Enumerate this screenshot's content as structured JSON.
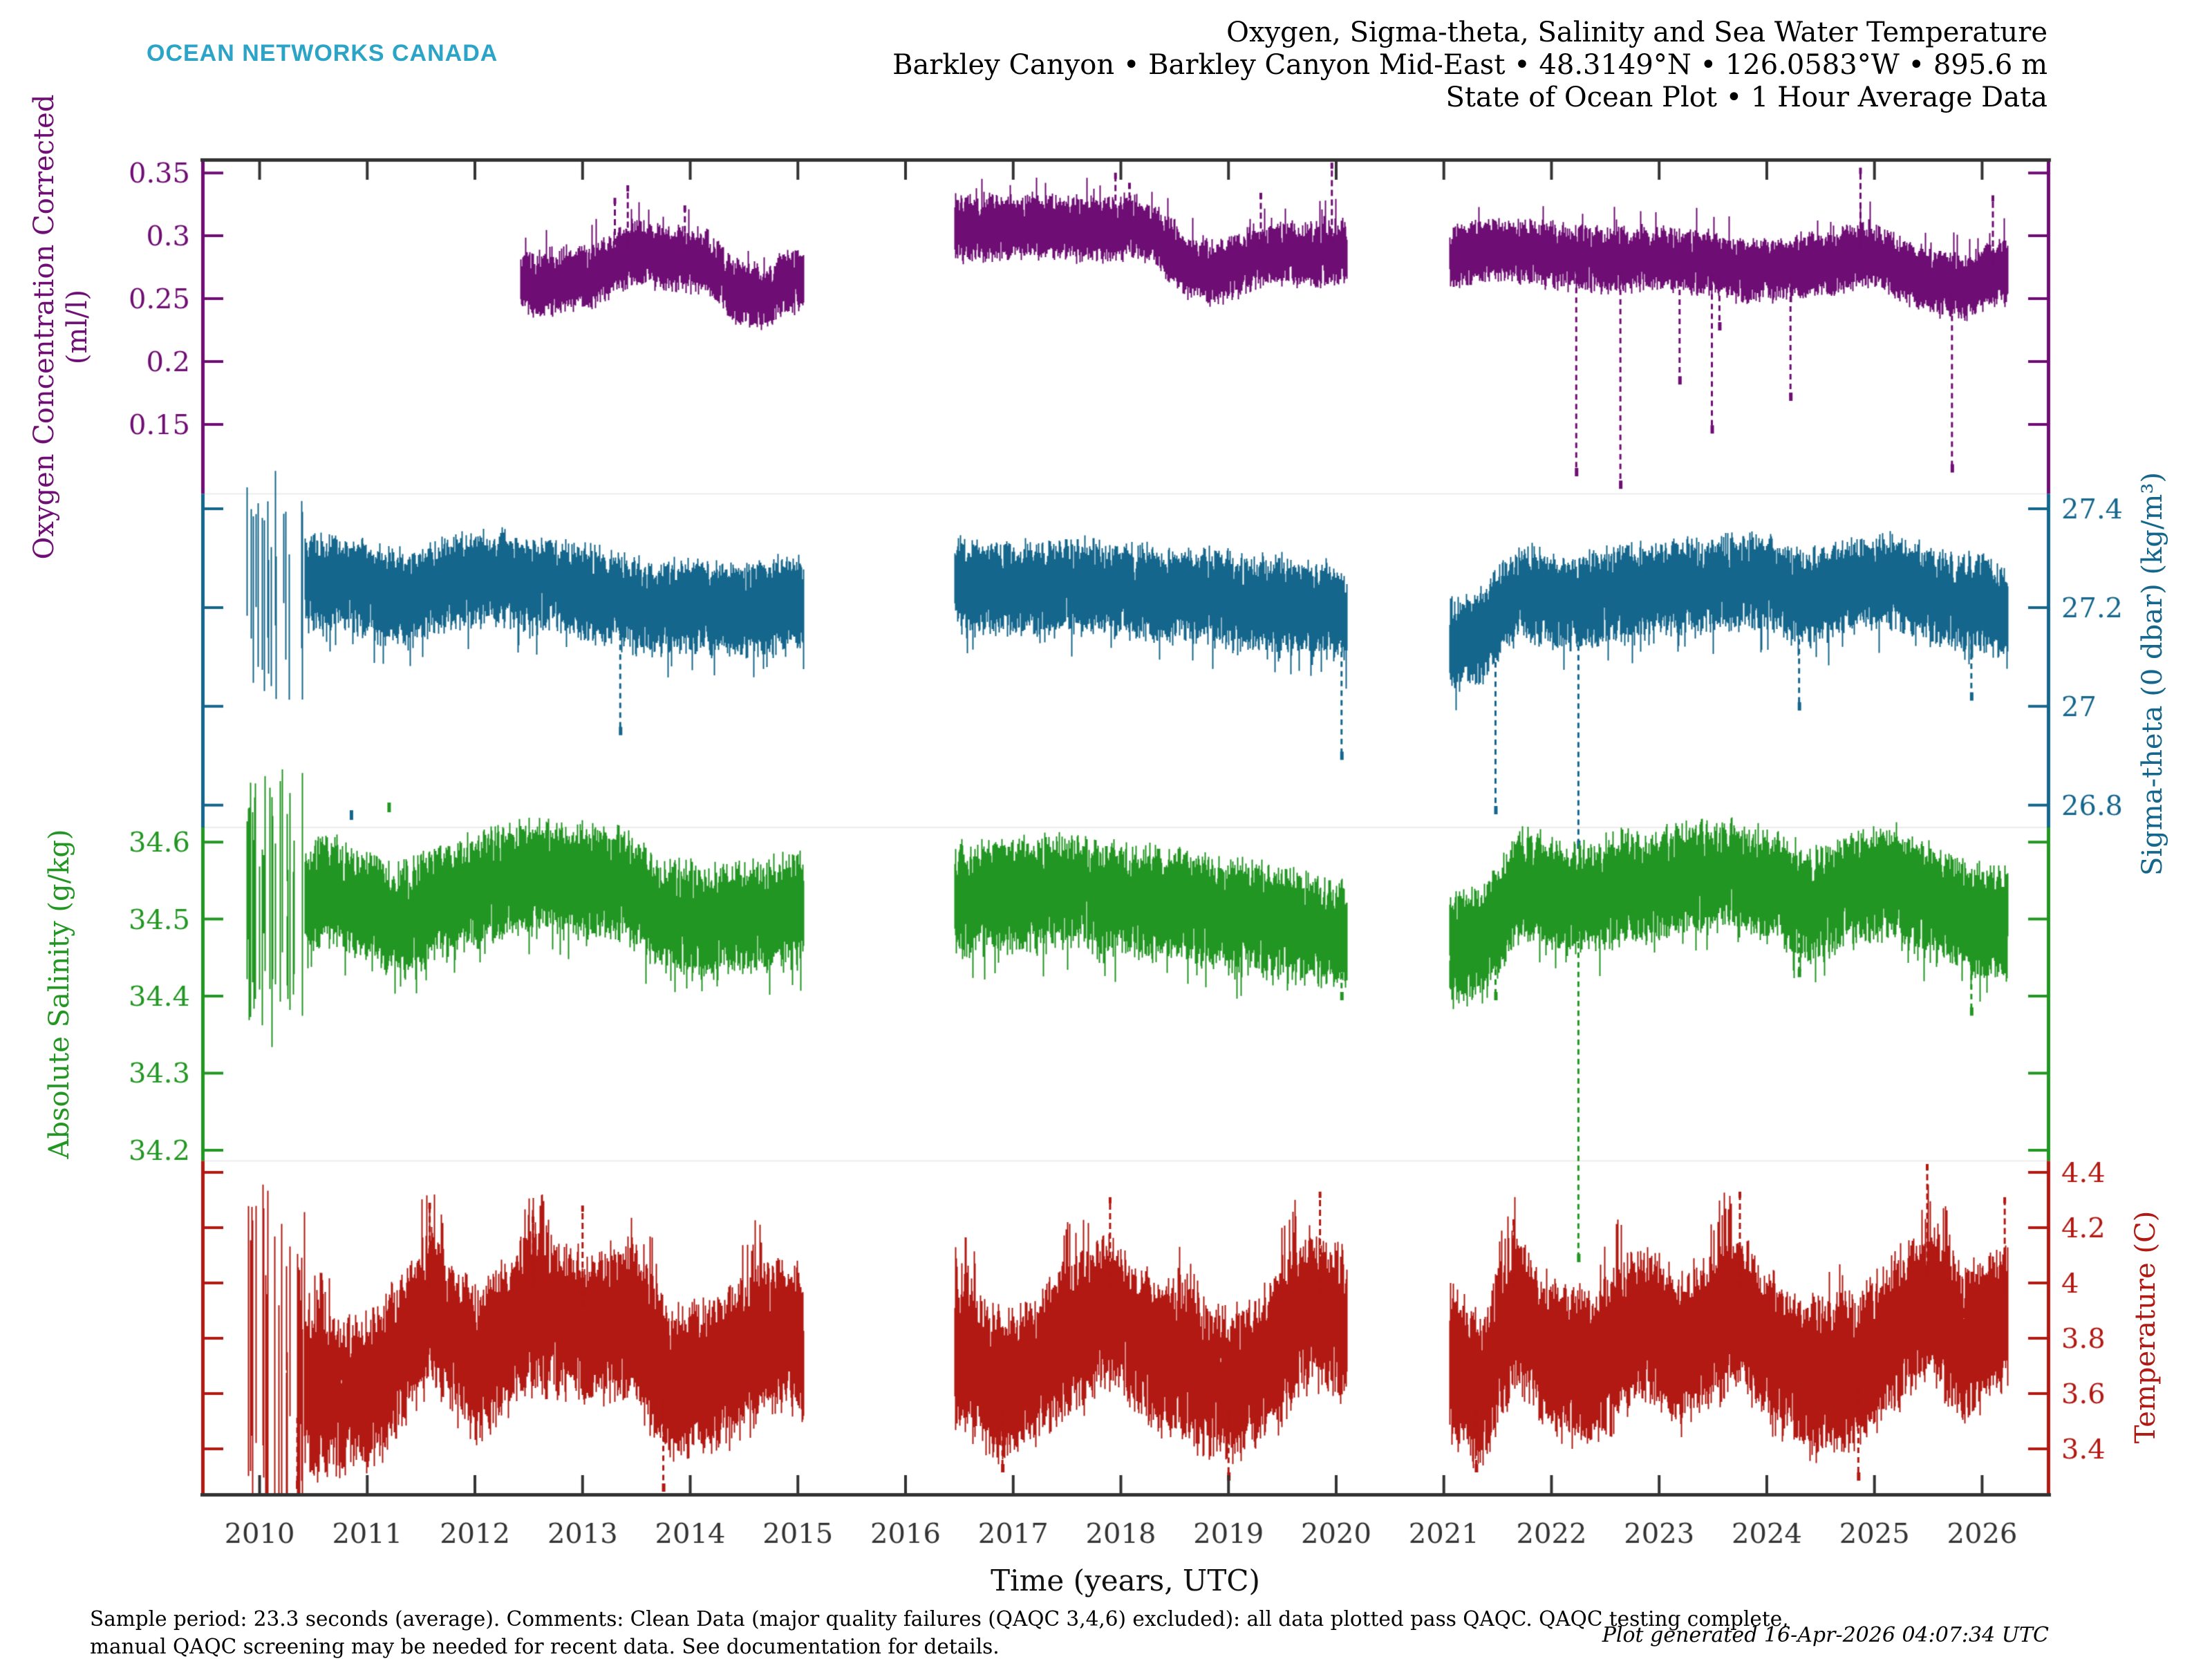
{
  "header": {
    "logo": "OCEAN NETWORKS CANADA",
    "title_lines": [
      "Oxygen, Sigma-theta, Salinity and Sea Water Temperature",
      "Barkley Canyon • Barkley Canyon Mid-East • 48.3149°N • 126.0583°W • 895.6 m",
      "State of Ocean Plot • 1 Hour Average Data"
    ]
  },
  "footer": {
    "left_lines": [
      "Sample period: 23.3 seconds (average). Comments: Clean Data (major quality failures (QAQC 3,4,6) excluded): all data plotted pass QAQC. QAQC testing complete,",
      "manual QAQC screening may be needed for recent data. See documentation for details."
    ],
    "generated": "Plot generated 16-Apr-2026 04:07:34 UTC"
  },
  "colors": {
    "logo": "#2ba4c7",
    "axis_dark": "#333333",
    "oxygen": "#6e0d73",
    "sigma_theta": "#15668c",
    "salinity": "#229622",
    "temperature": "#b11912"
  },
  "chart_data": {
    "type": "scatter",
    "title": "Oxygen, Sigma-theta, Salinity and Sea Water Temperature",
    "x_axis": {
      "label": "Time (years, UTC)",
      "min": 2009.47,
      "max": 2026.62,
      "tick_values": [
        2010,
        2011,
        2012,
        2013,
        2014,
        2015,
        2016,
        2017,
        2018,
        2019,
        2020,
        2021,
        2022,
        2023,
        2024,
        2025,
        2026
      ],
      "tick_labels": [
        "2010",
        "2011",
        "2012",
        "2013",
        "2014",
        "2015",
        "2016",
        "2017",
        "2018",
        "2019",
        "2020",
        "2021",
        "2022",
        "2023",
        "2024",
        "2025",
        "2026"
      ]
    },
    "series": [
      {
        "name": "Oxygen Concentration Corrected",
        "axis_label_lines": [
          "Oxygen Concentration Corrected",
          "(ml/l)"
        ],
        "unit": "ml/l",
        "side": "left",
        "quarter": 0,
        "color": "#6e0d73",
        "vmin": 0.0947,
        "vmax": 0.36,
        "ticks": [
          {
            "v": 0.35,
            "label": "0.35"
          },
          {
            "v": 0.3,
            "label": "0.3"
          },
          {
            "v": 0.25,
            "label": "0.25"
          },
          {
            "v": 0.2,
            "label": "0.2"
          },
          {
            "v": 0.15,
            "label": "0.15"
          }
        ],
        "segments": [
          [
            2012.42,
            2015.05
          ],
          [
            2016.45,
            2020.1
          ],
          [
            2021.05,
            2026.24
          ]
        ],
        "anchors": [
          [
            2012.42,
            0.262
          ],
          [
            2012.8,
            0.264
          ],
          [
            2013.1,
            0.27
          ],
          [
            2013.45,
            0.287
          ],
          [
            2013.85,
            0.283
          ],
          [
            2014.15,
            0.28
          ],
          [
            2014.4,
            0.258
          ],
          [
            2014.7,
            0.252
          ],
          [
            2014.9,
            0.262
          ],
          [
            2015.05,
            0.268
          ],
          [
            2016.45,
            0.306
          ],
          [
            2017.2,
            0.308
          ],
          [
            2017.8,
            0.305
          ],
          [
            2018.1,
            0.309
          ],
          [
            2018.35,
            0.3
          ],
          [
            2018.6,
            0.277
          ],
          [
            2018.9,
            0.271
          ],
          [
            2019.2,
            0.283
          ],
          [
            2019.5,
            0.289
          ],
          [
            2019.8,
            0.285
          ],
          [
            2020.1,
            0.29
          ],
          [
            2021.05,
            0.284
          ],
          [
            2021.5,
            0.291
          ],
          [
            2022.0,
            0.285
          ],
          [
            2022.5,
            0.281
          ],
          [
            2023.0,
            0.284
          ],
          [
            2023.5,
            0.278
          ],
          [
            2023.85,
            0.271
          ],
          [
            2024.2,
            0.276
          ],
          [
            2024.6,
            0.28
          ],
          [
            2024.95,
            0.287
          ],
          [
            2025.3,
            0.272
          ],
          [
            2025.6,
            0.263
          ],
          [
            2025.85,
            0.259
          ],
          [
            2026.05,
            0.27
          ],
          [
            2026.24,
            0.272
          ]
        ],
        "noise": {
          "up": 0.011,
          "dn": 0.013,
          "up_prob": 0.055,
          "up_amp": 0.036,
          "dn_prob": 0.04,
          "dn_amp": 0.018,
          "seasonal": false
        },
        "down_spikes": [
          [
            2022.23,
            0.112
          ],
          [
            2022.64,
            0.102
          ],
          [
            2023.19,
            0.185
          ],
          [
            2023.49,
            0.146
          ],
          [
            2023.56,
            0.228
          ],
          [
            2024.22,
            0.172
          ],
          [
            2025.72,
            0.115
          ]
        ],
        "up_spikes": [
          [
            2013.3,
            0.328
          ],
          [
            2013.42,
            0.338
          ],
          [
            2013.95,
            0.322
          ],
          [
            2017.95,
            0.348
          ],
          [
            2018.08,
            0.34
          ],
          [
            2019.3,
            0.332
          ],
          [
            2019.96,
            0.356
          ],
          [
            2024.87,
            0.352
          ],
          [
            2026.1,
            0.33
          ]
        ],
        "outlier_points": []
      },
      {
        "name": "Sigma-theta (0 dbar)",
        "axis_label_lines": [
          "Sigma-theta (0 dbar) (kg/m³)"
        ],
        "unit": "kg/m³",
        "side": "right",
        "quarter": 1,
        "color": "#15668c",
        "vmin": 26.755,
        "vmax": 27.43,
        "ticks": [
          {
            "v": 27.4,
            "label": "27.4"
          },
          {
            "v": 27.2,
            "label": "27.2"
          },
          {
            "v": 27.0,
            "label": "27"
          },
          {
            "v": 26.8,
            "label": "26.8"
          }
        ],
        "segments": [
          [
            2009.85,
            2015.05
          ],
          [
            2016.45,
            2020.1
          ],
          [
            2021.05,
            2026.24
          ]
        ],
        "sparse_until": 2010.42,
        "anchors": [
          [
            2009.85,
            27.24
          ],
          [
            2010.2,
            27.25
          ],
          [
            2010.6,
            27.26
          ],
          [
            2011.0,
            27.24
          ],
          [
            2011.4,
            27.22
          ],
          [
            2011.8,
            27.26
          ],
          [
            2012.3,
            27.26
          ],
          [
            2012.8,
            27.25
          ],
          [
            2013.2,
            27.23
          ],
          [
            2013.6,
            27.2
          ],
          [
            2014.0,
            27.21
          ],
          [
            2014.5,
            27.2
          ],
          [
            2015.05,
            27.22
          ],
          [
            2016.45,
            27.25
          ],
          [
            2017.0,
            27.24
          ],
          [
            2017.5,
            27.25
          ],
          [
            2018.0,
            27.24
          ],
          [
            2018.5,
            27.23
          ],
          [
            2019.0,
            27.22
          ],
          [
            2019.5,
            27.21
          ],
          [
            2019.9,
            27.2
          ],
          [
            2020.1,
            27.18
          ],
          [
            2021.05,
            27.13
          ],
          [
            2021.35,
            27.15
          ],
          [
            2021.7,
            27.24
          ],
          [
            2022.1,
            27.21
          ],
          [
            2022.5,
            27.23
          ],
          [
            2023.0,
            27.24
          ],
          [
            2023.5,
            27.25
          ],
          [
            2024.0,
            27.26
          ],
          [
            2024.4,
            27.22
          ],
          [
            2024.8,
            27.25
          ],
          [
            2025.2,
            27.26
          ],
          [
            2025.6,
            27.22
          ],
          [
            2026.0,
            27.22
          ],
          [
            2026.24,
            27.19
          ]
        ],
        "noise": {
          "up": 0.04,
          "dn": 0.05,
          "up_prob": 0.03,
          "up_amp": 0.05,
          "dn_prob": 0.07,
          "dn_amp": 0.12,
          "seasonal": false
        },
        "down_spikes": [
          [
            2013.35,
            26.95
          ],
          [
            2020.05,
            26.9
          ],
          [
            2021.48,
            26.79
          ],
          [
            2022.25,
            26.72
          ],
          [
            2024.3,
            27.0
          ],
          [
            2025.9,
            27.02
          ]
        ],
        "up_spikes": [],
        "outlier_points": [
          [
            2010.85,
            26.78
          ]
        ]
      },
      {
        "name": "Absolute Salinity",
        "axis_label_lines": [
          "Absolute Salinity (g/kg)"
        ],
        "unit": "g/kg",
        "side": "left",
        "quarter": 2,
        "color": "#229622",
        "vmin": 34.186,
        "vmax": 34.619,
        "ticks": [
          {
            "v": 34.6,
            "label": "34.6"
          },
          {
            "v": 34.5,
            "label": "34.5"
          },
          {
            "v": 34.4,
            "label": "34.4"
          },
          {
            "v": 34.3,
            "label": "34.3"
          },
          {
            "v": 34.2,
            "label": "34.2"
          }
        ],
        "segments": [
          [
            2009.85,
            2015.05
          ],
          [
            2016.45,
            2020.1
          ],
          [
            2021.05,
            2026.24
          ]
        ],
        "sparse_until": 2010.42,
        "anchors": [
          [
            2009.85,
            34.51
          ],
          [
            2010.2,
            34.52
          ],
          [
            2010.6,
            34.54
          ],
          [
            2011.0,
            34.52
          ],
          [
            2011.3,
            34.5
          ],
          [
            2011.7,
            34.53
          ],
          [
            2012.1,
            34.55
          ],
          [
            2012.5,
            34.56
          ],
          [
            2013.0,
            34.555
          ],
          [
            2013.4,
            34.55
          ],
          [
            2013.7,
            34.51
          ],
          [
            2014.1,
            34.5
          ],
          [
            2014.5,
            34.505
          ],
          [
            2015.05,
            34.52
          ],
          [
            2016.45,
            34.53
          ],
          [
            2017.0,
            34.535
          ],
          [
            2017.5,
            34.54
          ],
          [
            2018.0,
            34.53
          ],
          [
            2018.5,
            34.52
          ],
          [
            2019.0,
            34.51
          ],
          [
            2019.5,
            34.5
          ],
          [
            2020.1,
            34.48
          ],
          [
            2021.05,
            34.465
          ],
          [
            2021.4,
            34.48
          ],
          [
            2021.7,
            34.55
          ],
          [
            2022.1,
            34.53
          ],
          [
            2022.5,
            34.54
          ],
          [
            2023.0,
            34.55
          ],
          [
            2023.5,
            34.56
          ],
          [
            2024.0,
            34.55
          ],
          [
            2024.4,
            34.52
          ],
          [
            2024.8,
            34.545
          ],
          [
            2025.2,
            34.55
          ],
          [
            2025.6,
            34.52
          ],
          [
            2026.0,
            34.5
          ],
          [
            2026.24,
            34.5
          ]
        ],
        "noise": {
          "up": 0.03,
          "dn": 0.038,
          "up_prob": 0.03,
          "up_amp": 0.035,
          "dn_prob": 0.07,
          "dn_amp": 0.09,
          "seasonal": false
        },
        "down_spikes": [
          [
            2020.05,
            34.4
          ],
          [
            2021.48,
            34.4
          ],
          [
            2022.25,
            34.06
          ],
          [
            2024.3,
            34.43
          ],
          [
            2025.9,
            34.38
          ]
        ],
        "up_spikes": [],
        "outlier_points": [
          [
            2011.2,
            34.645
          ]
        ]
      },
      {
        "name": "Temperature",
        "axis_label_lines": [
          "Temperature (C)"
        ],
        "unit": "C",
        "side": "right",
        "quarter": 3,
        "color": "#b11912",
        "vmin": 3.235,
        "vmax": 4.441,
        "ticks": [
          {
            "v": 4.4,
            "label": "4.4"
          },
          {
            "v": 4.2,
            "label": "4.2"
          },
          {
            "v": 4.0,
            "label": "4"
          },
          {
            "v": 3.8,
            "label": "3.8"
          },
          {
            "v": 3.6,
            "label": "3.6"
          },
          {
            "v": 3.4,
            "label": "3.4"
          }
        ],
        "segments": [
          [
            2009.85,
            2015.05
          ],
          [
            2016.45,
            2020.1
          ],
          [
            2021.05,
            2026.24
          ]
        ],
        "sparse_until": 2010.42,
        "anchors": [
          [
            2009.85,
            3.8
          ],
          [
            2010.3,
            3.62
          ],
          [
            2010.7,
            3.6
          ],
          [
            2011.1,
            3.65
          ],
          [
            2011.6,
            3.93
          ],
          [
            2012.0,
            3.72
          ],
          [
            2012.55,
            3.93
          ],
          [
            2013.0,
            3.86
          ],
          [
            2013.45,
            3.88
          ],
          [
            2013.8,
            3.66
          ],
          [
            2014.3,
            3.7
          ],
          [
            2014.8,
            3.84
          ],
          [
            2015.05,
            3.8
          ],
          [
            2016.45,
            3.76
          ],
          [
            2016.9,
            3.64
          ],
          [
            2017.4,
            3.78
          ],
          [
            2017.9,
            3.93
          ],
          [
            2018.3,
            3.76
          ],
          [
            2018.7,
            3.7
          ],
          [
            2019.05,
            3.64
          ],
          [
            2019.4,
            3.74
          ],
          [
            2019.75,
            3.93
          ],
          [
            2020.1,
            3.85
          ],
          [
            2021.05,
            3.74
          ],
          [
            2021.35,
            3.62
          ],
          [
            2021.65,
            3.92
          ],
          [
            2022.0,
            3.76
          ],
          [
            2022.4,
            3.7
          ],
          [
            2022.8,
            3.88
          ],
          [
            2023.2,
            3.78
          ],
          [
            2023.75,
            3.93
          ],
          [
            2024.1,
            3.75
          ],
          [
            2024.5,
            3.66
          ],
          [
            2024.85,
            3.72
          ],
          [
            2025.2,
            3.85
          ],
          [
            2025.5,
            3.97
          ],
          [
            2025.8,
            3.8
          ],
          [
            2026.0,
            3.85
          ],
          [
            2026.24,
            3.92
          ]
        ],
        "noise": {
          "up": 0.11,
          "dn": 0.15,
          "up_prob": 0.32,
          "up_amp": 0.4,
          "dn_prob": 0.12,
          "dn_amp": 0.25,
          "seasonal": true
        },
        "down_spikes": [
          [
            2010.35,
            3.27
          ],
          [
            2013.75,
            3.26
          ],
          [
            2016.9,
            3.33
          ],
          [
            2019.0,
            3.3
          ],
          [
            2021.3,
            3.33
          ],
          [
            2024.85,
            3.3
          ]
        ],
        "up_spikes": [
          [
            2011.58,
            4.28
          ],
          [
            2012.54,
            4.23
          ],
          [
            2013.0,
            4.27
          ],
          [
            2017.9,
            4.3
          ],
          [
            2019.85,
            4.32
          ],
          [
            2021.65,
            4.22
          ],
          [
            2023.75,
            4.32
          ],
          [
            2025.49,
            4.42
          ],
          [
            2026.21,
            4.3
          ]
        ],
        "outlier_points": []
      }
    ]
  }
}
